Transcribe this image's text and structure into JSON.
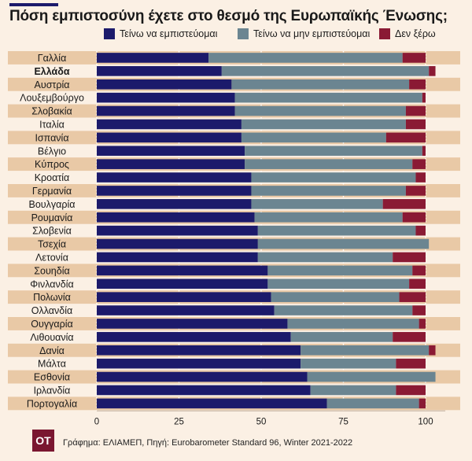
{
  "title": "Πόση εμπιστοσύνη έχετε στο θεσμό της Ευρωπαϊκής Ένωσης;",
  "source": "Γράφημα: ΕΛΙΑΜΕΠ, Πηγή: Eurobarometer Standard 96, Winter 2021-2022",
  "logo": "OT",
  "colors": {
    "trust": "#1c1a6b",
    "distrust": "#6b8591",
    "dontknow": "#8a1a34",
    "row_band": "#e9c9a6",
    "background": "#fbf0e4"
  },
  "chart_data": {
    "type": "bar",
    "orientation": "horizontal",
    "stacked": true,
    "title": "Πόση εμπιστοσύνη έχετε στο θεσμό της Ευρωπαϊκής Ένωσης;",
    "categories": [
      "Γαλλία",
      "Ελλάδα",
      "Αυστρία",
      "Λουξεμβούργο",
      "Σλοβακία",
      "Ιταλία",
      "Ισπανία",
      "Βέλγιο",
      "Κύπρος",
      "Κροατία",
      "Γερμανία",
      "Βουλγαρία",
      "Ρουμανία",
      "Σλοβενία",
      "Τσεχία",
      "Λετονία",
      "Σουηδία",
      "Φινλανδία",
      "Πολωνία",
      "Ολλανδία",
      "Ουγγαρία",
      "Λιθουανία",
      "Δανία",
      "Μάλτα",
      "Εσθονία",
      "Ιρλανδία",
      "Πορτογαλία"
    ],
    "highlight_category": "Ελλάδα",
    "series": [
      {
        "name": "Τείνω να εμπιστεύομαι",
        "color": "#1c1a6b",
        "values": [
          34,
          38,
          41,
          42,
          42,
          44,
          44,
          45,
          45,
          47,
          47,
          47,
          48,
          49,
          49,
          49,
          52,
          52,
          53,
          54,
          58,
          59,
          62,
          62,
          64,
          65,
          70
        ]
      },
      {
        "name": "Τείνω να μην εμπιστεύομαι",
        "color": "#6b8591",
        "values": [
          59,
          63,
          54,
          57,
          52,
          50,
          44,
          54,
          51,
          50,
          47,
          40,
          45,
          48,
          52,
          41,
          44,
          43,
          39,
          42,
          40,
          31,
          39,
          29,
          39,
          26,
          28
        ]
      },
      {
        "name": "Δεν ξέρω",
        "color": "#8a1a34",
        "values": [
          7,
          2,
          5,
          1,
          6,
          6,
          12,
          1,
          4,
          3,
          6,
          13,
          7,
          3,
          0,
          10,
          4,
          5,
          8,
          4,
          2,
          10,
          2,
          9,
          0,
          9,
          2
        ]
      }
    ],
    "xlim": [
      0,
      106
    ],
    "xticks": [
      0,
      25,
      50,
      75,
      100
    ],
    "xlabel": "",
    "ylabel": "",
    "legend_position": "top",
    "grid": true
  }
}
